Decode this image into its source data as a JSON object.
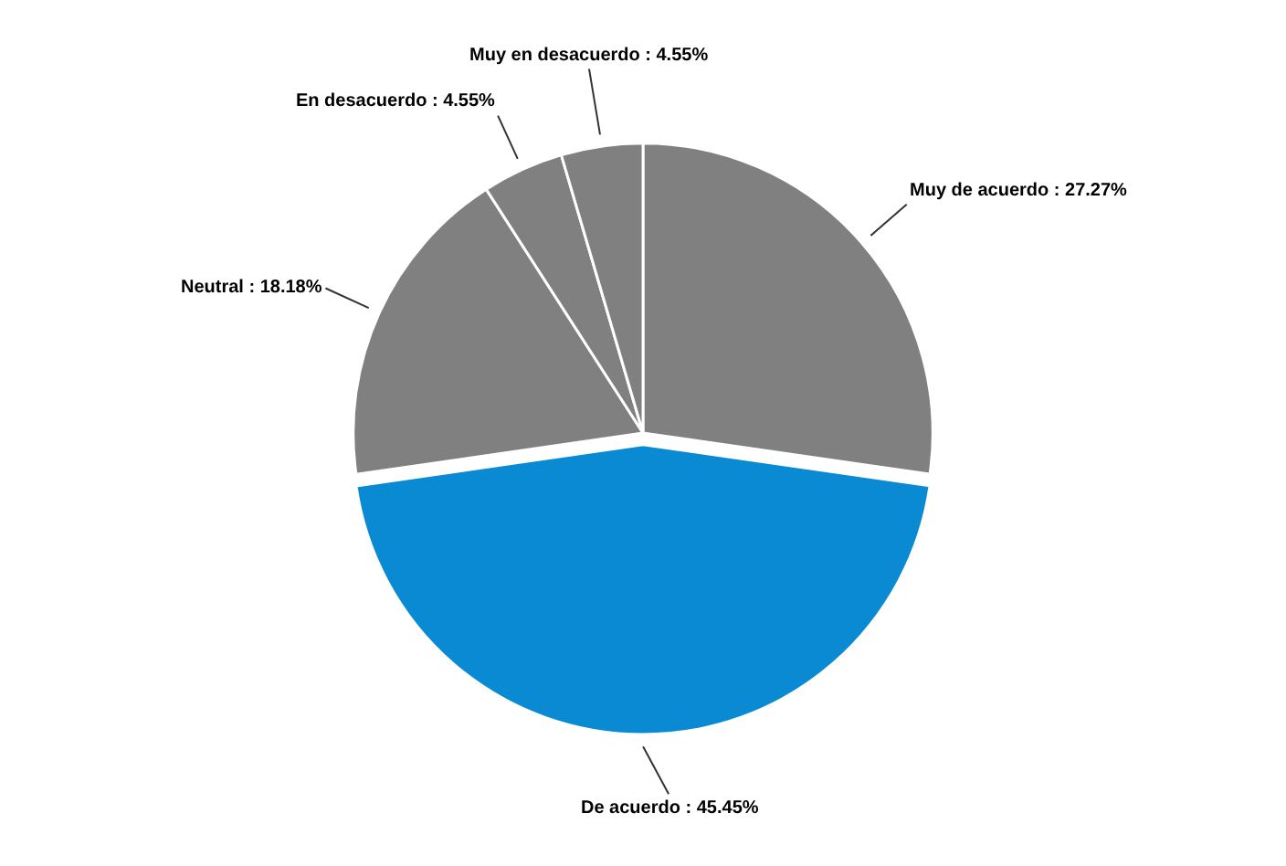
{
  "chart_data": {
    "type": "pie",
    "categories": [
      "Muy de acuerdo",
      "De acuerdo",
      "Neutral",
      "En desacuerdo",
      "Muy en desacuerdo"
    ],
    "values": [
      27.27,
      45.45,
      18.18,
      4.55,
      4.55
    ],
    "value_labels": [
      "27.27%",
      "45.45%",
      "18.18%",
      "4.55%",
      "4.55%"
    ],
    "colors": [
      "#808080",
      "#0a8ad2",
      "#808080",
      "#808080",
      "#808080"
    ],
    "legend": false
  }
}
